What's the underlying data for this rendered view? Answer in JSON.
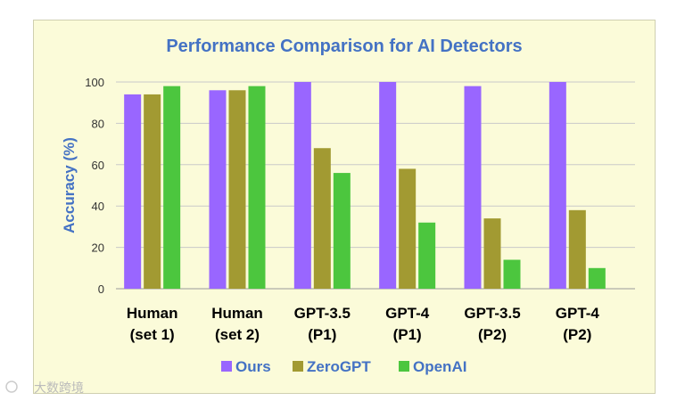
{
  "chart_data": {
    "type": "bar",
    "title": "Performance Comparison for AI Detectors",
    "xlabel": "",
    "ylabel": "Accuracy (%)",
    "ylim": [
      0,
      100
    ],
    "yticks": [
      0,
      20,
      40,
      60,
      80,
      100
    ],
    "grid": true,
    "legend_position": "bottom",
    "categories": [
      [
        "Human",
        "(set 1)"
      ],
      [
        "Human",
        "(set 2)"
      ],
      [
        "GPT-3.5",
        "(P1)"
      ],
      [
        "GPT-4",
        "(P1)"
      ],
      [
        "GPT-3.5",
        "(P2)"
      ],
      [
        "GPT-4",
        "(P2)"
      ]
    ],
    "series": [
      {
        "name": "Ours",
        "color": "#9966ff",
        "values": [
          94,
          96,
          100,
          100,
          98,
          100
        ]
      },
      {
        "name": "ZeroGPT",
        "color": "#a29a32",
        "values": [
          94,
          96,
          68,
          58,
          34,
          38
        ]
      },
      {
        "name": "OpenAI",
        "color": "#4cc63e",
        "values": [
          98,
          98,
          56,
          32,
          14,
          10
        ]
      }
    ]
  },
  "watermark": {
    "text": "大数跨境"
  }
}
